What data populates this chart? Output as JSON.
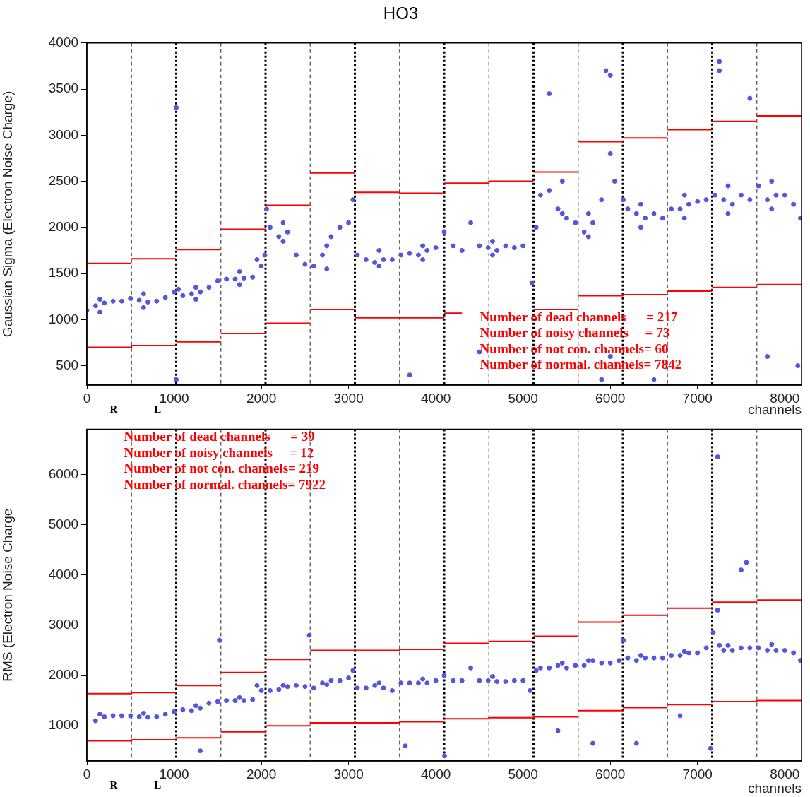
{
  "chart_data": [
    {
      "type": "scatter",
      "title": "HO3",
      "xlabel": "channels",
      "ylabel": "Gaussian Sigma (Electron Noise Charge)",
      "grid": false,
      "legend": false,
      "marker": "circle",
      "xlim": [
        0,
        8192
      ],
      "xticks": [
        0,
        1000,
        2000,
        3000,
        4000,
        5000,
        6000,
        7000,
        8000
      ],
      "ylim": [
        290,
        4000
      ],
      "yticks": [
        500,
        1000,
        1500,
        2000,
        2500,
        3000,
        3500,
        4000
      ],
      "series": [
        {
          "color": "#5555dd",
          "x": [
            0,
            100,
            200,
            300,
            400,
            500,
            600,
            700,
            800,
            900,
            1000,
            1050,
            1100,
            1200,
            1300,
            1400,
            1500,
            1600,
            1700,
            1800,
            1900,
            1950,
            2000,
            2040,
            2060,
            2100,
            2200,
            2300,
            2400,
            2500,
            2600,
            2700,
            2800,
            2900,
            3000,
            3050,
            3100,
            3200,
            3300,
            3400,
            3500,
            3600,
            3700,
            3800,
            3900,
            4000,
            4096,
            4200,
            4300,
            4400,
            4500,
            4600,
            4700,
            4800,
            4900,
            5000,
            5100,
            5150,
            5200,
            5300,
            5400,
            5500,
            5600,
            5700,
            5800,
            5900,
            6000,
            6050,
            6150,
            6200,
            6300,
            6400,
            6500,
            6600,
            6700,
            6800,
            6900,
            7000,
            7100,
            7200,
            7300,
            7400,
            7500,
            7600,
            7700,
            7800,
            7900,
            8000,
            8100,
            8180,
            1024,
            5950,
            6000,
            7250,
            7250,
            7600,
            5300,
            1024,
            3700,
            8150,
            7800,
            6500,
            4500,
            6000,
            5900,
            150,
            650,
            1250,
            1750,
            2250,
            2750,
            3350,
            3850,
            4650,
            5450,
            5750,
            6350,
            6850,
            7350,
            7850,
            150,
            650,
            1250,
            1750,
            2250,
            2750,
            3350,
            3850,
            4650,
            5450,
            5750,
            6350,
            6850,
            7350,
            7850
          ],
          "values": [
            1100,
            1150,
            1180,
            1200,
            1200,
            1230,
            1210,
            1190,
            1200,
            1240,
            1300,
            1330,
            1260,
            1280,
            1300,
            1350,
            1420,
            1440,
            1440,
            1450,
            1460,
            1650,
            1580,
            1700,
            2200,
            2000,
            1900,
            1950,
            1700,
            1600,
            1580,
            1700,
            1900,
            2000,
            2050,
            2300,
            1700,
            1650,
            1620,
            1650,
            1650,
            1700,
            1720,
            1700,
            1750,
            1780,
            1950,
            1800,
            1750,
            2050,
            1800,
            1780,
            1750,
            1800,
            1780,
            1800,
            1400,
            2000,
            2350,
            2400,
            2200,
            2100,
            2050,
            1950,
            2050,
            2300,
            2800,
            2500,
            2300,
            2200,
            2150,
            2100,
            2150,
            2100,
            2200,
            2200,
            2250,
            2280,
            2300,
            2350,
            2300,
            2250,
            2350,
            2300,
            2450,
            2300,
            2350,
            2350,
            2250,
            2100,
            3300,
            3700,
            3650,
            3800,
            3700,
            3400,
            3450,
            350,
            400,
            500,
            600,
            350,
            650,
            600,
            350,
            1220,
            1280,
            1350,
            1520,
            2050,
            1800,
            1750,
            1800,
            1850,
            2500,
            2150,
            2250,
            2350,
            2450,
            2500,
            1080,
            1130,
            1220,
            1380,
            1850,
            1550,
            1580,
            1650,
            1700,
            2150,
            1900,
            2000,
            2100,
            2150,
            2200
          ]
        },
        {
          "type": "line",
          "marker": "none",
          "color": "#ff0000",
          "x": [
            0,
            512
          ],
          "values": [
            1610,
            1610
          ]
        },
        {
          "type": "line",
          "marker": "none",
          "color": "#ff0000",
          "x": [
            512,
            1024
          ],
          "values": [
            1660,
            1660
          ]
        },
        {
          "type": "line",
          "marker": "none",
          "color": "#ff0000",
          "x": [
            1024,
            1536
          ],
          "values": [
            1760,
            1760
          ]
        },
        {
          "type": "line",
          "marker": "none",
          "color": "#ff0000",
          "x": [
            1536,
            2048
          ],
          "values": [
            1980,
            1980
          ]
        },
        {
          "type": "line",
          "marker": "none",
          "color": "#ff0000",
          "x": [
            2048,
            2560
          ],
          "values": [
            2240,
            2240
          ]
        },
        {
          "type": "line",
          "marker": "none",
          "color": "#ff0000",
          "x": [
            2560,
            3072
          ],
          "values": [
            2590,
            2590
          ]
        },
        {
          "type": "line",
          "marker": "none",
          "color": "#ff0000",
          "x": [
            3072,
            3584,
            3584,
            4096
          ],
          "values": [
            2380,
            2380,
            2370,
            2370
          ]
        },
        {
          "type": "line",
          "marker": "none",
          "color": "#ff0000",
          "x": [
            4096,
            4608,
            4608,
            5120
          ],
          "values": [
            2480,
            2480,
            2500,
            2500
          ]
        },
        {
          "type": "line",
          "marker": "none",
          "color": "#ff0000",
          "x": [
            5120,
            5632
          ],
          "values": [
            2600,
            2600
          ]
        },
        {
          "type": "line",
          "marker": "none",
          "color": "#ff0000",
          "x": [
            5632,
            6144
          ],
          "values": [
            2930,
            2930
          ]
        },
        {
          "type": "line",
          "marker": "none",
          "color": "#ff0000",
          "x": [
            6144,
            6656
          ],
          "values": [
            2970,
            2970
          ]
        },
        {
          "type": "line",
          "marker": "none",
          "color": "#ff0000",
          "x": [
            6656,
            7168
          ],
          "values": [
            3060,
            3060
          ]
        },
        {
          "type": "line",
          "marker": "none",
          "color": "#ff0000",
          "x": [
            7168,
            7680
          ],
          "values": [
            3150,
            3150
          ]
        },
        {
          "type": "line",
          "marker": "none",
          "color": "#ff0000",
          "x": [
            7680,
            8192
          ],
          "values": [
            3210,
            3210
          ]
        },
        {
          "type": "line",
          "marker": "none",
          "color": "#ff0000",
          "x": [
            0,
            512,
            512,
            1024
          ],
          "values": [
            700,
            700,
            720,
            720
          ]
        },
        {
          "type": "line",
          "marker": "none",
          "color": "#ff0000",
          "x": [
            1024,
            1536
          ],
          "values": [
            760,
            760
          ]
        },
        {
          "type": "line",
          "marker": "none",
          "color": "#ff0000",
          "x": [
            1536,
            2048
          ],
          "values": [
            850,
            850
          ]
        },
        {
          "type": "line",
          "marker": "none",
          "color": "#ff0000",
          "x": [
            2048,
            2560
          ],
          "values": [
            960,
            960
          ]
        },
        {
          "type": "line",
          "marker": "none",
          "color": "#ff0000",
          "x": [
            2560,
            3072
          ],
          "values": [
            1110,
            1110
          ]
        },
        {
          "type": "line",
          "marker": "none",
          "color": "#ff0000",
          "x": [
            3072,
            4096
          ],
          "values": [
            1020,
            1020
          ]
        },
        {
          "type": "line",
          "marker": "none",
          "color": "#ff0000",
          "x": [
            4096,
            4300
          ],
          "values": [
            1070,
            1070
          ]
        },
        {
          "type": "line",
          "marker": "none",
          "color": "#ff0000",
          "x": [
            5120,
            5632
          ],
          "values": [
            1110,
            1110
          ]
        },
        {
          "type": "line",
          "marker": "none",
          "color": "#ff0000",
          "x": [
            5632,
            6144,
            6144,
            6656
          ],
          "values": [
            1260,
            1260,
            1270,
            1270
          ]
        },
        {
          "type": "line",
          "marker": "none",
          "color": "#ff0000",
          "x": [
            6656,
            7168
          ],
          "values": [
            1310,
            1310
          ]
        },
        {
          "type": "line",
          "marker": "none",
          "color": "#ff0000",
          "x": [
            7168,
            7680
          ],
          "values": [
            1350,
            1350
          ]
        },
        {
          "type": "line",
          "marker": "none",
          "color": "#ff0000",
          "x": [
            7680,
            8192
          ],
          "values": [
            1380,
            1380
          ]
        }
      ],
      "ref_lines": [
        {
          "axis": "x",
          "value": 512,
          "color": "#555555",
          "line_style": "dashed"
        },
        {
          "axis": "x",
          "value": 1024,
          "color": "#000000",
          "line_style": "dotted"
        },
        {
          "axis": "x",
          "value": 1536,
          "color": "#555555",
          "line_style": "dashed"
        },
        {
          "axis": "x",
          "value": 2048,
          "color": "#000000",
          "line_style": "dotted"
        },
        {
          "axis": "x",
          "value": 2560,
          "color": "#555555",
          "line_style": "dashed"
        },
        {
          "axis": "x",
          "value": 3072,
          "color": "#000000",
          "line_style": "dotted"
        },
        {
          "axis": "x",
          "value": 3584,
          "color": "#555555",
          "line_style": "dashed"
        },
        {
          "axis": "x",
          "value": 4096,
          "color": "#000000",
          "line_style": "dotted"
        },
        {
          "axis": "x",
          "value": 4608,
          "color": "#555555",
          "line_style": "dashed"
        },
        {
          "axis": "x",
          "value": 5120,
          "color": "#000000",
          "line_style": "dotted"
        },
        {
          "axis": "x",
          "value": 5632,
          "color": "#555555",
          "line_style": "dashed"
        },
        {
          "axis": "x",
          "value": 6144,
          "color": "#000000",
          "line_style": "dotted"
        },
        {
          "axis": "x",
          "value": 6656,
          "color": "#555555",
          "line_style": "dashed"
        },
        {
          "axis": "x",
          "value": 7168,
          "color": "#000000",
          "line_style": "dotted"
        },
        {
          "axis": "x",
          "value": 7680,
          "color": "#555555",
          "line_style": "dashed"
        }
      ],
      "annotations": [
        "Number of dead channels      = 217",
        "Number of noisy channels     = 73",
        "Number of not con. channels= 60",
        "Number of normal. channels= 7842",
        "R",
        "L"
      ]
    },
    {
      "type": "scatter",
      "xlabel": "channels",
      "ylabel": "RMS (Electron Noise Charge",
      "grid": false,
      "legend": false,
      "marker": "circle",
      "xlim": [
        0,
        8192
      ],
      "xticks": [
        0,
        1000,
        2000,
        3000,
        4000,
        5000,
        6000,
        7000,
        8000
      ],
      "ylim": [
        300,
        6900
      ],
      "yticks": [
        1000,
        2000,
        3000,
        4000,
        5000,
        6000
      ],
      "series": [
        {
          "color": "#5555dd",
          "x": [
            100,
            200,
            300,
            400,
            500,
            600,
            700,
            800,
            900,
            1000,
            1100,
            1200,
            1300,
            1400,
            1500,
            1600,
            1700,
            1800,
            1900,
            1950,
            2000,
            2100,
            2200,
            2300,
            2400,
            2500,
            2600,
            2700,
            2800,
            2900,
            3000,
            3050,
            3100,
            3200,
            3300,
            3400,
            3500,
            3600,
            3700,
            3800,
            3900,
            4000,
            4096,
            4200,
            4300,
            4400,
            4500,
            4600,
            4700,
            4800,
            4900,
            5000,
            5080,
            5150,
            5200,
            5300,
            5400,
            5500,
            5600,
            5700,
            5800,
            5900,
            6000,
            6100,
            6150,
            6200,
            6300,
            6400,
            6500,
            6600,
            6700,
            6800,
            6900,
            7000,
            7100,
            7180,
            7250,
            7300,
            7400,
            7500,
            7600,
            7700,
            7800,
            7900,
            8000,
            8100,
            8180,
            7230,
            7500,
            7560,
            7230,
            2550,
            1520,
            5400,
            5800,
            6300,
            6800,
            7150,
            1300,
            3650,
            4100,
            150,
            650,
            1250,
            1750,
            2250,
            2750,
            3350,
            3850,
            4650,
            5450,
            5750,
            6350,
            6850,
            7350,
            7850
          ],
          "values": [
            1100,
            1180,
            1200,
            1200,
            1200,
            1180,
            1170,
            1180,
            1230,
            1280,
            1320,
            1300,
            1350,
            1450,
            1480,
            1500,
            1500,
            1500,
            1520,
            1800,
            1700,
            1700,
            1720,
            1780,
            1800,
            1780,
            1750,
            1850,
            1900,
            1900,
            1950,
            2100,
            1750,
            1750,
            1800,
            1750,
            1700,
            1850,
            1850,
            1850,
            1850,
            1900,
            2000,
            1900,
            1900,
            2150,
            1900,
            1900,
            1880,
            1880,
            1900,
            1900,
            1700,
            2100,
            2150,
            2150,
            2200,
            2150,
            2200,
            2200,
            2300,
            2250,
            2250,
            2300,
            2700,
            2350,
            2300,
            2350,
            2350,
            2350,
            2400,
            2400,
            2450,
            2450,
            2550,
            2850,
            2600,
            2500,
            2500,
            2550,
            2550,
            2550,
            2500,
            2500,
            2500,
            2450,
            2300,
            6350,
            4100,
            4250,
            3300,
            2800,
            2700,
            900,
            650,
            650,
            1200,
            550,
            500,
            600,
            400,
            1230,
            1250,
            1400,
            1560,
            1800,
            1820,
            1850,
            1930,
            1980,
            2250,
            2300,
            2400,
            2480,
            2600,
            2620
          ]
        },
        {
          "type": "line",
          "marker": "none",
          "color": "#ff0000",
          "x": [
            0,
            512,
            512,
            1024
          ],
          "values": [
            1640,
            1640,
            1660,
            1660
          ]
        },
        {
          "type": "line",
          "marker": "none",
          "color": "#ff0000",
          "x": [
            1024,
            1536
          ],
          "values": [
            1800,
            1800
          ]
        },
        {
          "type": "line",
          "marker": "none",
          "color": "#ff0000",
          "x": [
            1536,
            2048
          ],
          "values": [
            2060,
            2060
          ]
        },
        {
          "type": "line",
          "marker": "none",
          "color": "#ff0000",
          "x": [
            2048,
            2560
          ],
          "values": [
            2320,
            2320
          ]
        },
        {
          "type": "line",
          "marker": "none",
          "color": "#ff0000",
          "x": [
            2560,
            3584,
            3584,
            4096
          ],
          "values": [
            2500,
            2500,
            2520,
            2520
          ]
        },
        {
          "type": "line",
          "marker": "none",
          "color": "#ff0000",
          "x": [
            4096,
            4608
          ],
          "values": [
            2640,
            2640
          ]
        },
        {
          "type": "line",
          "marker": "none",
          "color": "#ff0000",
          "x": [
            4608,
            5120
          ],
          "values": [
            2680,
            2680
          ]
        },
        {
          "type": "line",
          "marker": "none",
          "color": "#ff0000",
          "x": [
            5120,
            5632
          ],
          "values": [
            2780,
            2780
          ]
        },
        {
          "type": "line",
          "marker": "none",
          "color": "#ff0000",
          "x": [
            5632,
            6144
          ],
          "values": [
            3060,
            3060
          ]
        },
        {
          "type": "line",
          "marker": "none",
          "color": "#ff0000",
          "x": [
            6144,
            6656
          ],
          "values": [
            3200,
            3200
          ]
        },
        {
          "type": "line",
          "marker": "none",
          "color": "#ff0000",
          "x": [
            6656,
            7168
          ],
          "values": [
            3340,
            3340
          ]
        },
        {
          "type": "line",
          "marker": "none",
          "color": "#ff0000",
          "x": [
            7168,
            7680
          ],
          "values": [
            3460,
            3460
          ]
        },
        {
          "type": "line",
          "marker": "none",
          "color": "#ff0000",
          "x": [
            7680,
            8192
          ],
          "values": [
            3500,
            3500
          ]
        },
        {
          "type": "line",
          "marker": "none",
          "color": "#ff0000",
          "x": [
            0,
            512,
            512,
            1024
          ],
          "values": [
            700,
            700,
            720,
            720
          ]
        },
        {
          "type": "line",
          "marker": "none",
          "color": "#ff0000",
          "x": [
            1024,
            1536
          ],
          "values": [
            760,
            760
          ]
        },
        {
          "type": "line",
          "marker": "none",
          "color": "#ff0000",
          "x": [
            1536,
            2048
          ],
          "values": [
            880,
            880
          ]
        },
        {
          "type": "line",
          "marker": "none",
          "color": "#ff0000",
          "x": [
            2048,
            2560
          ],
          "values": [
            1000,
            1000
          ]
        },
        {
          "type": "line",
          "marker": "none",
          "color": "#ff0000",
          "x": [
            2560,
            3584,
            3584,
            4096
          ],
          "values": [
            1060,
            1060,
            1080,
            1080
          ]
        },
        {
          "type": "line",
          "marker": "none",
          "color": "#ff0000",
          "x": [
            4096,
            4608,
            4608,
            5120,
            5120,
            5632
          ],
          "values": [
            1140,
            1140,
            1160,
            1160,
            1180,
            1180
          ]
        },
        {
          "type": "line",
          "marker": "none",
          "color": "#ff0000",
          "x": [
            5632,
            6144
          ],
          "values": [
            1300,
            1300
          ]
        },
        {
          "type": "line",
          "marker": "none",
          "color": "#ff0000",
          "x": [
            6144,
            6656
          ],
          "values": [
            1360,
            1360
          ]
        },
        {
          "type": "line",
          "marker": "none",
          "color": "#ff0000",
          "x": [
            6656,
            7168
          ],
          "values": [
            1420,
            1420
          ]
        },
        {
          "type": "line",
          "marker": "none",
          "color": "#ff0000",
          "x": [
            7168,
            7680,
            7680,
            8192
          ],
          "values": [
            1480,
            1480,
            1500,
            1500
          ]
        }
      ],
      "ref_lines": [
        {
          "axis": "x",
          "value": 512,
          "color": "#555555",
          "line_style": "dashed"
        },
        {
          "axis": "x",
          "value": 1024,
          "color": "#000000",
          "line_style": "dotted"
        },
        {
          "axis": "x",
          "value": 1536,
          "color": "#555555",
          "line_style": "dashed"
        },
        {
          "axis": "x",
          "value": 2048,
          "color": "#000000",
          "line_style": "dotted"
        },
        {
          "axis": "x",
          "value": 2560,
          "color": "#555555",
          "line_style": "dashed"
        },
        {
          "axis": "x",
          "value": 3072,
          "color": "#000000",
          "line_style": "dotted"
        },
        {
          "axis": "x",
          "value": 3584,
          "color": "#555555",
          "line_style": "dashed"
        },
        {
          "axis": "x",
          "value": 4096,
          "color": "#000000",
          "line_style": "dotted"
        },
        {
          "axis": "x",
          "value": 4608,
          "color": "#555555",
          "line_style": "dashed"
        },
        {
          "axis": "x",
          "value": 5120,
          "color": "#000000",
          "line_style": "dotted"
        },
        {
          "axis": "x",
          "value": 5632,
          "color": "#555555",
          "line_style": "dashed"
        },
        {
          "axis": "x",
          "value": 6144,
          "color": "#000000",
          "line_style": "dotted"
        },
        {
          "axis": "x",
          "value": 6656,
          "color": "#555555",
          "line_style": "dashed"
        },
        {
          "axis": "x",
          "value": 7168,
          "color": "#000000",
          "line_style": "dotted"
        },
        {
          "axis": "x",
          "value": 7680,
          "color": "#555555",
          "line_style": "dashed"
        }
      ],
      "annotations": [
        "Number of dead channels      = 39",
        "Number of noisy channels     = 12",
        "Number of not con. channels= 219",
        "Number of normal. channels= 7922",
        "R",
        "L"
      ]
    }
  ]
}
